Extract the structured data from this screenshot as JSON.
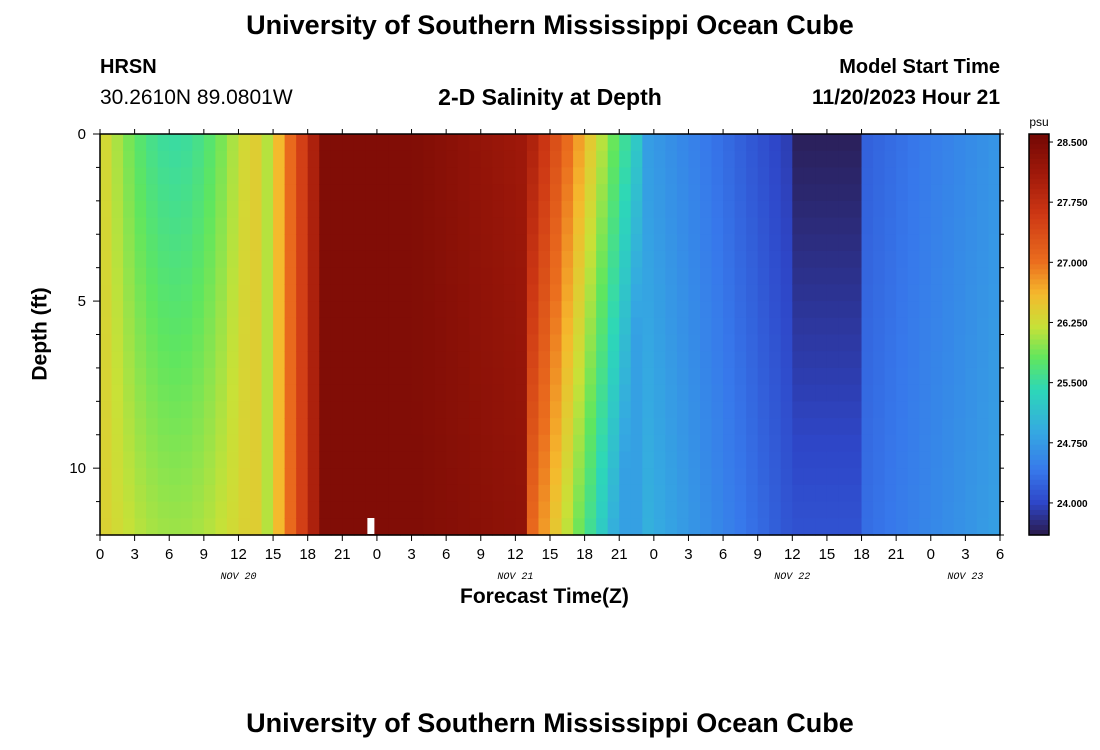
{
  "header": {
    "title": "University of Southern Mississippi Ocean Cube",
    "station": "HRSN",
    "coords": "30.2610N  89.0801W",
    "subtitle": "2-D Salinity at Depth",
    "model_start_label": "Model Start Time",
    "model_start_value": "11/20/2023 Hour 21"
  },
  "footer": {
    "title": "University of Southern Mississippi Ocean Cube"
  },
  "chart_data": {
    "type": "heatmap",
    "title": "2-D Salinity at Depth",
    "xlabel": "Forecast Time(Z)",
    "ylabel": "Depth (ft)",
    "x_tick_labels": [
      "0",
      "3",
      "6",
      "9",
      "12",
      "15",
      "18",
      "21",
      "0",
      "3",
      "6",
      "9",
      "12",
      "15",
      "18",
      "21",
      "0",
      "3",
      "6",
      "9",
      "12",
      "15",
      "18",
      "21",
      "0",
      "3",
      "6"
    ],
    "date_labels": [
      {
        "label": "NOV 20",
        "at_tick": 4
      },
      {
        "label": "NOV 21",
        "at_tick": 12
      },
      {
        "label": "NOV 22",
        "at_tick": 20
      },
      {
        "label": "NOV 23",
        "at_tick": 25
      }
    ],
    "y_ticks": [
      0,
      5,
      10
    ],
    "ylim": [
      0,
      12
    ],
    "y_inverted": true,
    "x_hours_range": [
      0,
      78
    ],
    "colorbar": {
      "label": "psu",
      "ticks": [
        "28.500",
        "27.750",
        "27.000",
        "26.250",
        "25.500",
        "24.750",
        "24.000"
      ],
      "range": [
        23.6,
        28.6
      ]
    },
    "colors": {
      "very_low": "#2a1a4a",
      "low": "#2e5fd6",
      "mid_low": "#35b8e0",
      "mid": "#3ee0a0",
      "mid_high": "#e8d83a",
      "high": "#d8401a",
      "very_high": "#7a0c04"
    },
    "depth_levels_ft": [
      0,
      0.5,
      1,
      1.5,
      2,
      2.5,
      3,
      3.5,
      4,
      4.5,
      5,
      5.5,
      6,
      6.5,
      7,
      7.5,
      8,
      8.5,
      9,
      9.5,
      10,
      10.5,
      11,
      11.5
    ],
    "time_step_hours": 1,
    "salinity_profile_by_hour_note": "values in psu"
  }
}
